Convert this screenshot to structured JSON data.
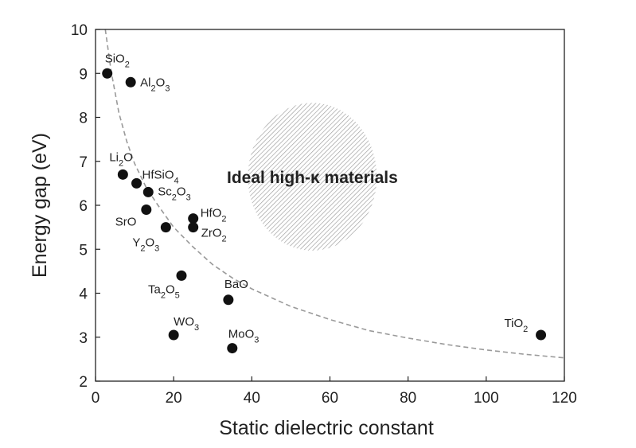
{
  "chart_data": {
    "type": "scatter",
    "title": "",
    "xlabel": "Static dielectric constant",
    "ylabel": "Energy gap (eV)",
    "xlim": [
      0,
      120
    ],
    "ylim": [
      2,
      10
    ],
    "xticks": [
      0,
      20,
      40,
      60,
      80,
      100,
      120
    ],
    "yticks": [
      2,
      3,
      4,
      5,
      6,
      7,
      8,
      9,
      10
    ],
    "grid": false,
    "points": [
      {
        "label": "SiO2",
        "x": 3.0,
        "y": 9.0
      },
      {
        "label": "Al2O3",
        "x": 9.0,
        "y": 8.8
      },
      {
        "label": "Li2O",
        "x": 7.0,
        "y": 6.7
      },
      {
        "label": "HfSiO4",
        "x": 10.5,
        "y": 6.5
      },
      {
        "label": "Sc2O3",
        "x": 13.5,
        "y": 6.3
      },
      {
        "label": "SrO",
        "x": 13.0,
        "y": 5.9
      },
      {
        "label": "Y2O3",
        "x": 18.0,
        "y": 5.5
      },
      {
        "label": "HfO2",
        "x": 25.0,
        "y": 5.7
      },
      {
        "label": "ZrO2",
        "x": 25.0,
        "y": 5.5
      },
      {
        "label": "Ta2O5",
        "x": 22.0,
        "y": 4.4
      },
      {
        "label": "BaO",
        "x": 34.0,
        "y": 3.85
      },
      {
        "label": "WO3",
        "x": 20.0,
        "y": 3.05
      },
      {
        "label": "MoO3",
        "x": 35.0,
        "y": 2.75
      },
      {
        "label": "TiO2",
        "x": 114.0,
        "y": 3.05
      }
    ],
    "trend_curve": [
      {
        "x": 2.5,
        "y": 10.0
      },
      {
        "x": 4,
        "y": 9.05
      },
      {
        "x": 6,
        "y": 8.1
      },
      {
        "x": 8,
        "y": 7.45
      },
      {
        "x": 10,
        "y": 6.95
      },
      {
        "x": 13,
        "y": 6.4
      },
      {
        "x": 16,
        "y": 6.0
      },
      {
        "x": 20,
        "y": 5.5
      },
      {
        "x": 25,
        "y": 5.05
      },
      {
        "x": 30,
        "y": 4.65
      },
      {
        "x": 35,
        "y": 4.35
      },
      {
        "x": 40,
        "y": 4.1
      },
      {
        "x": 50,
        "y": 3.7
      },
      {
        "x": 60,
        "y": 3.4
      },
      {
        "x": 70,
        "y": 3.15
      },
      {
        "x": 80,
        "y": 2.98
      },
      {
        "x": 90,
        "y": 2.83
      },
      {
        "x": 100,
        "y": 2.71
      },
      {
        "x": 110,
        "y": 2.61
      },
      {
        "x": 120,
        "y": 2.53
      }
    ],
    "region": {
      "label": "Ideal high-κ materials",
      "center": {
        "x": 55.5,
        "y": 6.65
      },
      "radius_x": 16.5,
      "radius_y": 1.68
    }
  }
}
